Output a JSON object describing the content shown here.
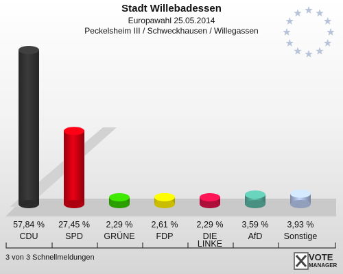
{
  "header": {
    "title": "Stadt Willebadessen",
    "subtitle": "Europawahl 25.05.2014",
    "district": "Peckelsheim III / Schweckhausen / Willegassen"
  },
  "footer": {
    "note": "3 von 3 Schnellmeldungen"
  },
  "brand": {
    "line1": "VOTE",
    "line2": "MANAGER"
  },
  "colors": {
    "CDU": "#333333",
    "SPD": "#cc0011",
    "GRÜNE": "#33bb00",
    "FDP": "#eedd00",
    "DIE LINKE": "#cc1144",
    "AfD": "#55aa99",
    "Sonstige": "#aabbdd",
    "stars": "#b8c4d8"
  },
  "chart_data": {
    "type": "bar",
    "categories": [
      "CDU",
      "SPD",
      "GRÜNE",
      "FDP",
      "DIE LINKE",
      "AfD",
      "Sonstige"
    ],
    "category_lines": [
      [
        "CDU"
      ],
      [
        "SPD"
      ],
      [
        "GRÜNE"
      ],
      [
        "FDP"
      ],
      [
        "DIE",
        "LINKE"
      ],
      [
        "AfD"
      ],
      [
        "Sonstige"
      ]
    ],
    "values": [
      57.84,
      27.45,
      2.29,
      2.61,
      2.29,
      3.59,
      3.93
    ],
    "value_labels": [
      "57,84 %",
      "27,45 %",
      "2,29 %",
      "2,61 %",
      "2,29 %",
      "3,59 %",
      "3,93 %"
    ],
    "ylim": [
      0,
      57.84
    ]
  }
}
